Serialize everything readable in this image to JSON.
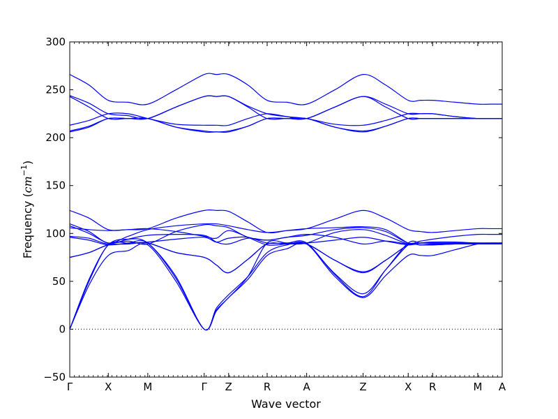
{
  "chart_data": {
    "type": "line",
    "title": "",
    "xlabel": "Wave vector",
    "ylabel_main": "Frequency (",
    "ylabel_unit": "cm",
    "ylabel_exp": "−1",
    "ylabel_close": ")",
    "ylim": [
      -50,
      300
    ],
    "yticks": [
      {
        "value": -50,
        "label": "−50"
      },
      {
        "value": 0,
        "label": "0"
      },
      {
        "value": 50,
        "label": "50"
      },
      {
        "value": 100,
        "label": "100"
      },
      {
        "value": 150,
        "label": "150"
      },
      {
        "value": 200,
        "label": "200"
      },
      {
        "value": 250,
        "label": "250"
      },
      {
        "value": 300,
        "label": "300"
      }
    ],
    "xlim": [
      0,
      9.2
    ],
    "xticks": [
      {
        "value": 0.0,
        "label": "Γ"
      },
      {
        "value": 0.82,
        "label": "X"
      },
      {
        "value": 1.66,
        "label": "M"
      },
      {
        "value": 2.86,
        "label": "Γ"
      },
      {
        "value": 3.38,
        "label": "Z"
      },
      {
        "value": 4.2,
        "label": "R"
      },
      {
        "value": 5.04,
        "label": "A"
      },
      {
        "value": 6.24,
        "label": "Z"
      },
      {
        "value": 7.2,
        "label": "X"
      },
      {
        "value": 7.72,
        "label": "R"
      },
      {
        "value": 8.68,
        "label": "M"
      },
      {
        "value": 9.2,
        "label": "A"
      }
    ],
    "zero_line": true,
    "line_color": "#0000ff",
    "series": [
      {
        "x": [
          0.0,
          0.41,
          0.82,
          1.24,
          1.66,
          2.26,
          2.86,
          3.12,
          3.38,
          3.79,
          4.2,
          4.62,
          5.04,
          5.64,
          6.24,
          6.72,
          7.2,
          7.46,
          7.72,
          8.2,
          8.68,
          8.94,
          9.2
        ],
        "y": [
          266,
          255,
          239,
          237,
          235,
          250,
          266,
          266,
          266,
          255,
          239,
          237,
          235,
          250,
          266,
          255,
          239,
          239,
          239,
          237,
          235,
          235,
          235
        ]
      },
      {
        "x": [
          0.0,
          0.41,
          0.82,
          1.24,
          1.66,
          2.26,
          2.86,
          3.12,
          3.38,
          3.79,
          4.2,
          4.62,
          5.04,
          5.64,
          6.24,
          6.72,
          7.2,
          7.46,
          7.72,
          8.2,
          8.68,
          8.94,
          9.2
        ],
        "y": [
          244,
          236,
          225,
          223,
          220,
          232,
          243,
          243,
          243,
          233,
          225,
          222,
          220,
          232,
          243,
          235,
          225,
          225,
          225,
          222,
          220,
          220,
          220
        ]
      },
      {
        "x": [
          0.0,
          0.41,
          0.82,
          1.24,
          1.66,
          2.26,
          2.86,
          3.12,
          3.38,
          3.79,
          4.2,
          4.62,
          5.04,
          5.64,
          6.24,
          6.72,
          7.2,
          7.46,
          7.72,
          8.2,
          8.68,
          8.94,
          9.2
        ],
        "y": [
          243,
          232,
          220,
          220,
          220,
          232,
          243,
          243,
          243,
          232,
          220,
          220,
          220,
          232,
          243,
          232,
          220,
          220,
          220,
          220,
          220,
          220,
          220
        ]
      },
      {
        "x": [
          0.0,
          0.41,
          0.82,
          1.24,
          1.66,
          2.26,
          2.86,
          3.12,
          3.38,
          3.79,
          4.2,
          4.62,
          5.04,
          5.64,
          6.24,
          6.72,
          7.2,
          7.46,
          7.72,
          8.2,
          8.68,
          8.94,
          9.2
        ],
        "y": [
          213,
          218,
          225,
          225,
          220,
          214,
          213,
          213,
          213,
          220,
          225,
          222,
          220,
          214,
          213,
          218,
          225,
          225,
          225,
          222,
          220,
          220,
          220
        ]
      },
      {
        "x": [
          0.0,
          0.41,
          0.82,
          1.24,
          1.66,
          2.26,
          2.86,
          3.12,
          3.38,
          3.79,
          4.2,
          4.62,
          5.04,
          5.64,
          6.24,
          6.72,
          7.2,
          7.46,
          7.72,
          8.2,
          8.68,
          8.94,
          9.2
        ],
        "y": [
          207,
          212,
          220,
          220,
          220,
          211,
          206,
          206,
          206,
          212,
          220,
          220,
          220,
          211,
          206,
          212,
          220,
          220,
          220,
          220,
          220,
          220,
          220
        ]
      },
      {
        "x": [
          0.0,
          0.41,
          0.82,
          1.24,
          1.66,
          2.26,
          2.86,
          3.12,
          3.38,
          3.79,
          4.2,
          4.62,
          5.04,
          5.64,
          6.24,
          6.72,
          7.2,
          7.46,
          7.72,
          8.2,
          8.68,
          8.94,
          9.2
        ],
        "y": [
          206,
          211,
          220,
          220,
          220,
          211,
          207,
          206,
          207,
          212,
          220,
          220,
          220,
          211,
          207,
          212,
          220,
          220,
          220,
          220,
          220,
          220,
          220
        ]
      },
      {
        "x": [
          0.0,
          0.41,
          0.82,
          1.24,
          1.66,
          2.26,
          2.86,
          3.12,
          3.38,
          3.79,
          4.2,
          4.62,
          5.04,
          5.64,
          6.24,
          6.72,
          7.2,
          7.46,
          7.72,
          8.2,
          8.68,
          8.94,
          9.2
        ],
        "y": [
          124,
          116,
          104,
          104,
          105,
          116,
          124,
          124,
          123,
          112,
          101,
          103,
          105,
          115,
          124,
          116,
          104,
          102,
          101,
          103,
          105,
          105,
          105
        ]
      },
      {
        "x": [
          0.0,
          0.41,
          0.82,
          1.24,
          1.66,
          2.26,
          2.86,
          3.12,
          3.38,
          3.79,
          4.2,
          4.62,
          5.04,
          5.64,
          6.24,
          6.72,
          7.2,
          7.46,
          7.72,
          8.2,
          8.68,
          8.94,
          9.2
        ],
        "y": [
          110,
          102,
          90,
          97,
          104,
          108,
          110,
          110,
          108,
          104,
          101,
          103,
          105,
          106,
          107,
          104,
          90,
          90,
          90,
          90,
          90,
          90,
          90
        ]
      },
      {
        "x": [
          0.0,
          0.41,
          0.82,
          1.24,
          1.66,
          2.26,
          2.86,
          3.12,
          3.38,
          3.79,
          4.2,
          4.62,
          5.04,
          5.64,
          6.24,
          6.72,
          7.2,
          7.46,
          7.72,
          8.2,
          8.68,
          8.94,
          9.2
        ],
        "y": [
          108,
          100,
          90,
          92,
          89,
          102,
          109,
          108,
          106,
          96,
          93,
          96,
          98,
          104,
          106,
          102,
          90,
          92,
          94,
          97,
          99,
          99,
          99
        ]
      },
      {
        "x": [
          0.0,
          0.41,
          0.82,
          1.24,
          1.66,
          2.26,
          2.86,
          3.12,
          3.38,
          3.79,
          4.2,
          4.62,
          5.04,
          5.64,
          6.24,
          6.72,
          7.2,
          7.46,
          7.72,
          8.2,
          8.68,
          8.94,
          9.2
        ],
        "y": [
          106,
          104,
          103,
          104,
          105,
          102,
          97,
          95,
          103,
          96,
          88,
          89,
          90,
          101,
          104,
          98,
          89,
          90,
          90,
          90,
          90,
          90,
          90
        ]
      },
      {
        "x": [
          0.0,
          0.41,
          0.82,
          1.24,
          1.66,
          2.26,
          2.86,
          3.12,
          3.38,
          3.79,
          4.2,
          4.62,
          5.04,
          5.64,
          6.24,
          6.72,
          7.2,
          7.46,
          7.72,
          8.2,
          8.68,
          8.94,
          9.2
        ],
        "y": [
          97,
          95,
          89,
          94,
          98,
          99,
          98,
          91,
          89,
          95,
          93,
          96,
          99,
          96,
          89,
          92,
          89,
          90,
          90,
          89,
          89,
          89,
          89
        ]
      },
      {
        "x": [
          0.0,
          0.41,
          0.82,
          1.24,
          1.66,
          2.26,
          2.86,
          3.12,
          3.38,
          3.79,
          4.2,
          4.62,
          5.04,
          5.64,
          6.24,
          6.72,
          7.2,
          7.46,
          7.72,
          8.2,
          8.68,
          8.94,
          9.2
        ],
        "y": [
          96,
          93,
          88,
          90,
          91,
          94,
          96,
          91,
          95,
          96,
          90,
          90,
          90,
          93,
          96,
          92,
          88,
          90,
          91,
          91,
          90,
          90,
          90
        ]
      },
      {
        "x": [
          0.0,
          0.41,
          0.82,
          1.24,
          1.66,
          2.26,
          2.86,
          3.12,
          3.38,
          3.79,
          4.2,
          4.62,
          5.04,
          5.64,
          6.24,
          6.72,
          7.2,
          7.46,
          7.72,
          8.2,
          8.68,
          8.94,
          9.2
        ],
        "y": [
          75,
          80,
          88,
          89,
          90,
          80,
          75,
          67,
          59,
          73,
          89,
          89,
          89,
          72,
          60,
          72,
          88,
          88,
          88,
          89,
          89,
          89,
          89
        ]
      },
      {
        "x": [
          0.0,
          0.41,
          0.82,
          1.24,
          1.66,
          2.26,
          2.86,
          3.12,
          3.38,
          3.79,
          4.2,
          4.62,
          5.04,
          5.64,
          6.24,
          6.72,
          7.2,
          7.46,
          7.72,
          8.2,
          8.68,
          8.94,
          9.2
        ],
        "y": [
          75,
          80,
          88,
          89,
          90,
          80,
          75,
          67,
          59,
          73,
          89,
          89,
          89,
          72,
          59,
          72,
          88,
          88,
          88,
          89,
          89,
          89,
          89
        ]
      },
      {
        "x": [
          0.0,
          0.41,
          0.82,
          1.24,
          1.66,
          2.26,
          2.86,
          3.12,
          3.38,
          3.79,
          4.2,
          4.62,
          5.04,
          5.64,
          6.24,
          6.72,
          7.2,
          7.46,
          7.72,
          8.2,
          8.68,
          8.94,
          9.2
        ],
        "y": [
          0,
          52,
          88,
          94,
          90,
          55,
          0,
          22,
          36,
          55,
          80,
          88,
          89,
          58,
          37,
          62,
          88,
          88,
          89,
          89,
          89,
          89,
          89
        ]
      },
      {
        "x": [
          0.0,
          0.41,
          0.82,
          1.24,
          1.66,
          2.26,
          2.86,
          3.12,
          3.38,
          3.79,
          4.2,
          4.62,
          5.04,
          5.64,
          6.24,
          6.72,
          7.2,
          7.46,
          7.72,
          8.2,
          8.68,
          8.94,
          9.2
        ],
        "y": [
          0,
          50,
          88,
          90,
          90,
          53,
          0,
          20,
          33,
          55,
          90,
          90,
          90,
          57,
          34,
          62,
          90,
          90,
          90,
          90,
          90,
          90,
          90
        ]
      },
      {
        "x": [
          0.0,
          0.41,
          0.82,
          1.24,
          1.66,
          2.26,
          2.86,
          3.12,
          3.38,
          3.79,
          4.2,
          4.62,
          5.04,
          5.64,
          6.24,
          6.72,
          7.2,
          7.46,
          7.72,
          8.2,
          8.68,
          8.94,
          9.2
        ],
        "y": [
          0,
          46,
          77,
          82,
          88,
          50,
          0,
          19,
          33,
          52,
          77,
          84,
          89,
          55,
          33,
          56,
          77,
          77,
          77,
          83,
          89,
          89,
          89
        ]
      }
    ]
  }
}
